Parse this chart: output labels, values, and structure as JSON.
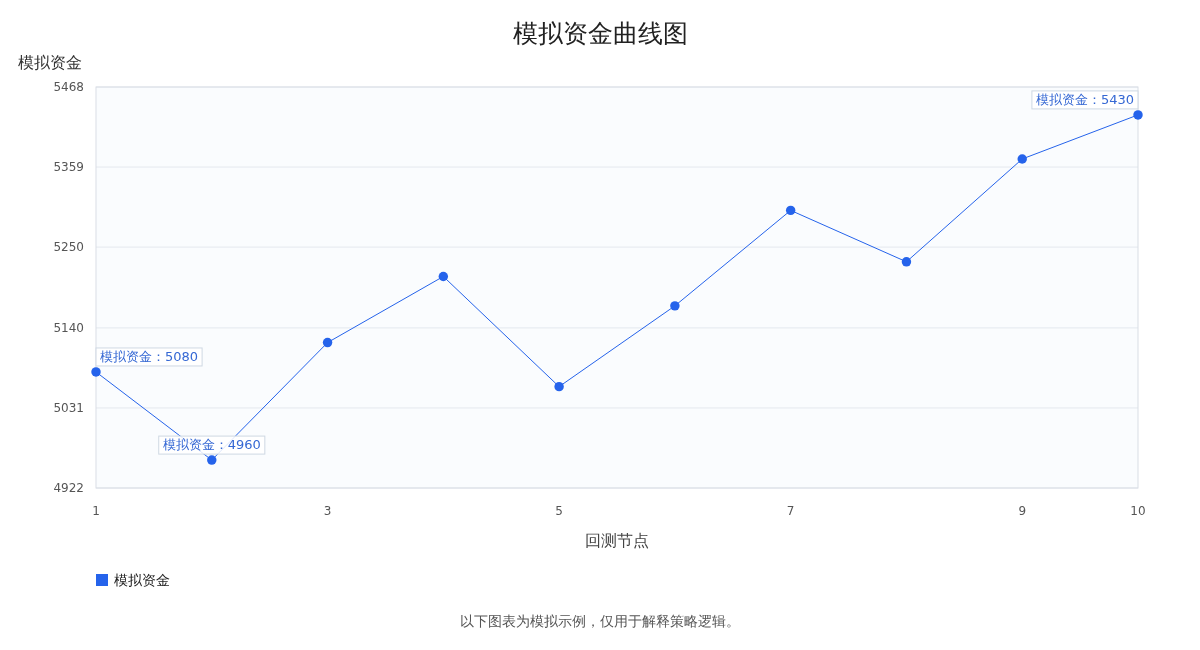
{
  "chart_data": {
    "type": "line",
    "title": "模拟资金曲线图",
    "xlabel": "回测节点",
    "ylabel": "模拟资金",
    "annotations": [
      "以下图表为模拟示例，仅用于解释策略逻辑。"
    ],
    "x": [
      1,
      2,
      3,
      4,
      5,
      6,
      7,
      8,
      9,
      10
    ],
    "series": [
      {
        "name": "模拟资金",
        "color": "#2563eb",
        "values": [
          5080,
          4960,
          5120,
          5210,
          5060,
          5170,
          5300,
          5230,
          5370,
          5430
        ],
        "value_labels": [
          "模拟资金：5080",
          "模拟资金：4960",
          null,
          null,
          null,
          null,
          null,
          null,
          null,
          "模拟资金：5430"
        ]
      }
    ],
    "xlim": [
      1,
      10
    ],
    "xticks": [
      1,
      3,
      5,
      7,
      9,
      10
    ],
    "ylim": [
      4922,
      5468
    ],
    "yticks": [
      4922,
      5031,
      5140,
      5250,
      5359,
      5468
    ],
    "grid": "y",
    "legend": "bottom left",
    "marker": "circle",
    "line_style": "solid"
  }
}
